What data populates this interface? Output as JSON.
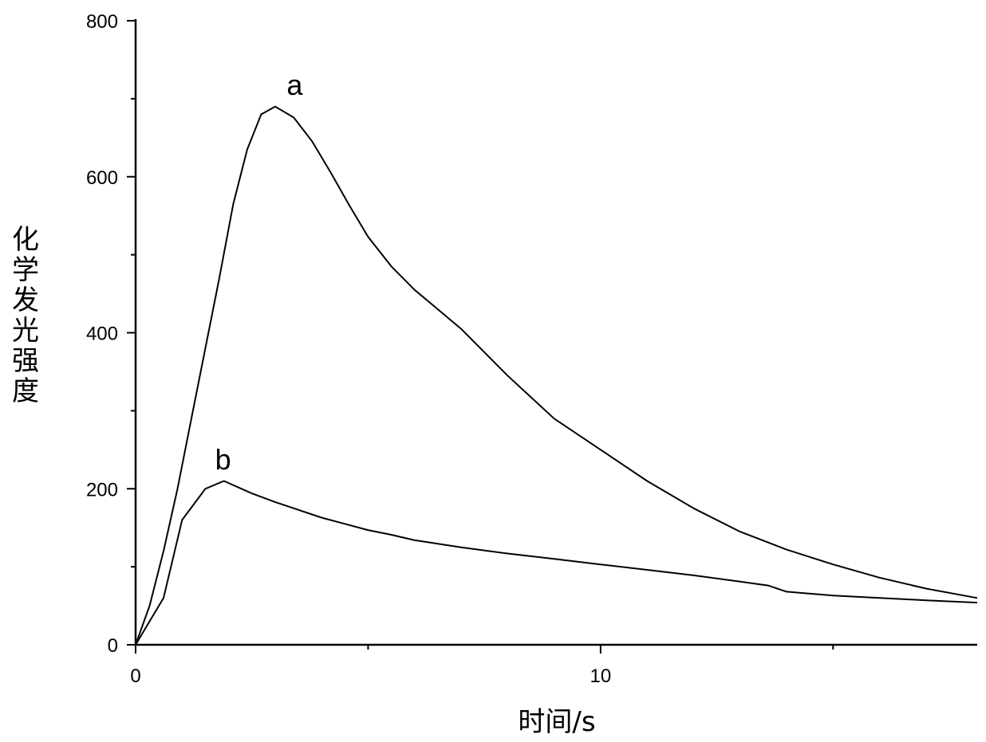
{
  "chart_data": {
    "type": "line",
    "xlabel": "时间/s",
    "ylabel": "化学发光强度",
    "xlim": [
      0,
      18.1
    ],
    "ylim": [
      0,
      800
    ],
    "x_major_ticks": [
      0,
      10
    ],
    "x_minor_ticks": [
      5,
      15
    ],
    "y_major_ticks": [
      0,
      200,
      400,
      600,
      800
    ],
    "y_minor_ticks": [
      100,
      300,
      500,
      700
    ],
    "series": [
      {
        "name": "a",
        "label_at": [
          3.42,
          705
        ],
        "x": [
          0,
          0.3,
          0.6,
          0.9,
          1.2,
          1.5,
          1.8,
          2.1,
          2.4,
          2.7,
          3.0,
          3.4,
          3.8,
          4.2,
          4.6,
          5.0,
          5.5,
          6.0,
          6.5,
          7.0,
          8.0,
          9.0,
          10.0,
          11.0,
          12.0,
          13.0,
          14.0,
          15.0,
          16.0,
          17.0,
          18.1
        ],
        "y": [
          0,
          50,
          120,
          200,
          290,
          380,
          470,
          565,
          635,
          680,
          690,
          676,
          645,
          605,
          563,
          523,
          485,
          455,
          430,
          405,
          345,
          290,
          250,
          210,
          175,
          145,
          122,
          103,
          86,
          72,
          60
        ]
      },
      {
        "name": "b",
        "label_at": [
          1.88,
          225
        ],
        "x": [
          0,
          0.2,
          0.6,
          1.0,
          1.5,
          1.9,
          2.5,
          3.0,
          3.5,
          4.0,
          4.5,
          5.0,
          5.5,
          6.0,
          7.0,
          8.0,
          9.0,
          10.0,
          11.0,
          12.0,
          13.0,
          13.6,
          14.0,
          15.0,
          16.0,
          17.0,
          18.1
        ],
        "y": [
          0,
          20,
          60,
          160,
          200,
          210,
          194,
          183,
          173,
          163,
          155,
          147,
          141,
          134,
          125,
          117,
          110,
          103,
          96,
          89,
          81,
          76,
          68,
          63,
          60,
          57,
          54
        ]
      }
    ]
  }
}
